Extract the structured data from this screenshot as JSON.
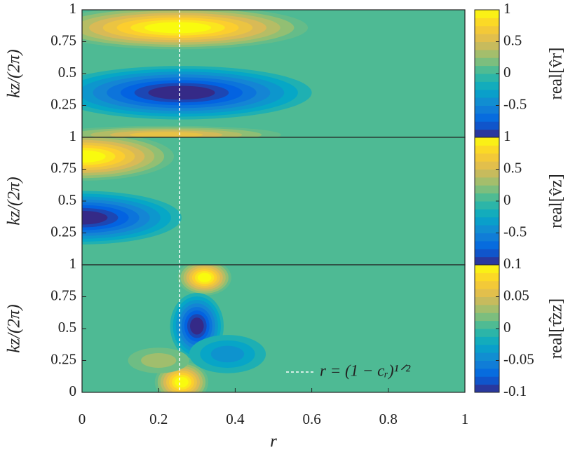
{
  "chart_data": [
    {
      "type": "contour",
      "ylabel": "kz/(2π)",
      "colorbar_label": "real[v̂r]",
      "xlim": [
        0,
        1
      ],
      "ylim": [
        0,
        1
      ],
      "yticks": [
        0.25,
        0.5,
        0.75,
        1
      ],
      "clim": [
        -1,
        1
      ],
      "cticks": [
        -0.5,
        0,
        0.5,
        1
      ],
      "vline": 0.255,
      "features": [
        {
          "x": 0.25,
          "y": 0.86,
          "value": 1,
          "rx": 0.34,
          "ry": 0.17
        },
        {
          "x": 0.26,
          "y": 0.35,
          "value": -1,
          "rx": 0.34,
          "ry": 0.21
        },
        {
          "x": 0.22,
          "y": 0.02,
          "value": 0.6,
          "rx": 0.3,
          "ry": 0.07
        }
      ]
    },
    {
      "type": "contour",
      "ylabel": "kz/(2π)",
      "colorbar_label": "real[v̂z]",
      "xlim": [
        0,
        1
      ],
      "ylim": [
        0,
        1
      ],
      "yticks": [
        0.25,
        0.5,
        0.75,
        1
      ],
      "clim": [
        -1,
        1
      ],
      "cticks": [
        -0.5,
        0,
        0.5,
        1
      ],
      "vline": 0.255,
      "features": [
        {
          "x": 0,
          "y": 0.85,
          "value": 1,
          "rx": 0.24,
          "ry": 0.19
        },
        {
          "x": 0,
          "y": 0.37,
          "value": -1,
          "rx": 0.26,
          "ry": 0.21
        }
      ]
    },
    {
      "type": "contour",
      "ylabel": "kz/(2π)",
      "colorbar_label": "real[τ̂zz]",
      "xlabel": "r",
      "xlim": [
        0,
        1
      ],
      "ylim": [
        0,
        1
      ],
      "yticks": [
        0,
        0.25,
        0.5,
        0.75,
        1
      ],
      "xticks": [
        0,
        0.2,
        0.4,
        0.6,
        0.8,
        1
      ],
      "clim": [
        -0.1,
        0.1
      ],
      "cticks": [
        -0.1,
        -0.05,
        0,
        0.05,
        0.1
      ],
      "vline": 0.255,
      "legend_label": "r = (1 − cᵣ)¹ᐟ²",
      "features": [
        {
          "x": 0.32,
          "y": 0.9,
          "value": 0.1,
          "rx": 0.07,
          "ry": 0.14
        },
        {
          "x": 0.3,
          "y": 0.52,
          "value": -0.1,
          "rx": 0.07,
          "ry": 0.26
        },
        {
          "x": 0.26,
          "y": 0.08,
          "value": 0.1,
          "rx": 0.07,
          "ry": 0.16
        },
        {
          "x": 0.38,
          "y": 0.3,
          "value": -0.04,
          "rx": 0.1,
          "ry": 0.15
        },
        {
          "x": 0.2,
          "y": 0.25,
          "value": 0.03,
          "rx": 0.08,
          "ry": 0.1
        }
      ]
    }
  ]
}
